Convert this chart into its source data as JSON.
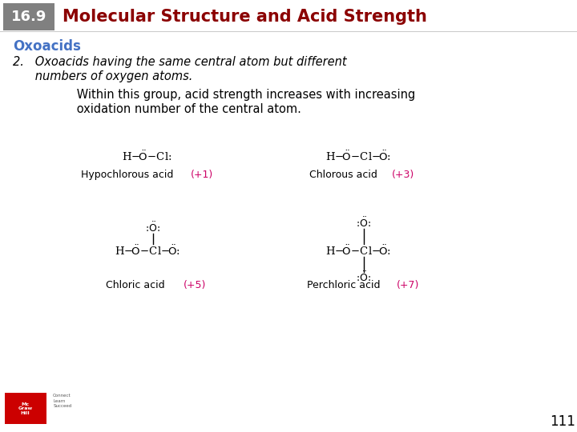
{
  "header_box_color": "#808080",
  "header_number": "16.9",
  "header_title": "Molecular Structure and Acid Strength",
  "header_title_color": "#8B0000",
  "header_number_color": "#ffffff",
  "section_label": "Oxoacids",
  "section_label_color": "#4472c4",
  "point2_line1": "2.   Oxoacids having the same central atom but different",
  "point2_line2": "      numbers of oxygen atoms.",
  "body_line1": "      Within this group, acid strength increases with increasing",
  "body_line2": "      oxidation number of the central atom.",
  "acid1_name": "Hypochlorous acid",
  "acid1_ox": "(+1)",
  "acid2_name": "Chlorous acid",
  "acid2_ox": "(+3)",
  "acid3_name": "Chloric acid",
  "acid3_ox": "(+5)",
  "acid4_name": "Perchloric acid",
  "acid4_ox": "(+7)",
  "ox_color": "#cc0066",
  "page_number": "111",
  "bg_color": "#ffffff",
  "text_color": "#000000",
  "logo_color": "#cc0000"
}
